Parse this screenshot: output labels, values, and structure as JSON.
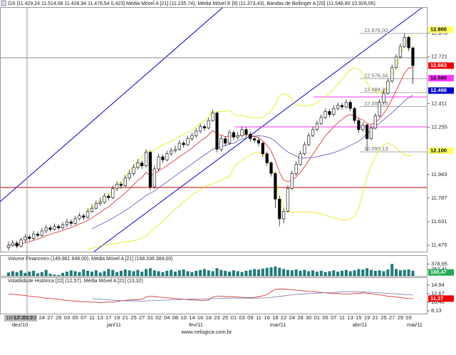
{
  "chart_data": {
    "type": "candlestick",
    "title": "DJI [11.429,24 11.514,08 11.428,94 11.476,54 0,423] Média Móvel A [21] (11.235,74), Média Móvel E [9] (11.373,43), Bandas de Bollinger A [20] (11.548,80 10.926,05)",
    "categories": [
      "10/12/2010",
      null,
      "17",
      null,
      "20",
      null,
      "22",
      null,
      "24",
      null,
      "27",
      null,
      "29",
      null,
      "03",
      null,
      "05",
      null,
      "07",
      null,
      "11",
      null,
      "13",
      null,
      "17",
      null,
      "19",
      null,
      "21",
      null,
      "25",
      null,
      "27",
      null,
      "31",
      null,
      "02",
      null,
      "04",
      null,
      "08",
      null,
      "10",
      null,
      "14",
      null,
      "16",
      null,
      "18",
      null,
      "23",
      null,
      "25",
      null,
      "01",
      null,
      "03",
      null,
      "09",
      null,
      "11",
      null,
      "16",
      null,
      "18",
      null,
      "22",
      null,
      "24",
      null,
      "28",
      null,
      "30",
      null,
      "01",
      null,
      "05",
      null,
      "07",
      null,
      "11",
      null,
      "13",
      null,
      "15",
      null,
      "19",
      null,
      "21",
      null,
      "25",
      null,
      "27",
      null,
      "29",
      null,
      "03",
      null
    ],
    "months": [
      "dez/10",
      "jan/11",
      "fev/11",
      "mar/11",
      "abr/11",
      "mai/11"
    ],
    "candles": [
      [
        11460,
        11500,
        11440,
        11475
      ],
      [
        11475,
        11510,
        11465,
        11490
      ],
      [
        11490,
        11505,
        11455,
        11470
      ],
      [
        11470,
        11525,
        11460,
        11510
      ],
      [
        11510,
        11550,
        11495,
        11530
      ],
      [
        11530,
        11545,
        11505,
        11520
      ],
      [
        11520,
        11570,
        11510,
        11550
      ],
      [
        11550,
        11565,
        11525,
        11540
      ],
      [
        11540,
        11590,
        11530,
        11570
      ],
      [
        11570,
        11610,
        11555,
        11590
      ],
      [
        11590,
        11605,
        11565,
        11580
      ],
      [
        11580,
        11620,
        11570,
        11600
      ],
      [
        11600,
        11615,
        11575,
        11590
      ],
      [
        11590,
        11630,
        11580,
        11610
      ],
      [
        11610,
        11650,
        11595,
        11630
      ],
      [
        11630,
        11645,
        11600,
        11620
      ],
      [
        11620,
        11670,
        11610,
        11650
      ],
      [
        11650,
        11690,
        11640,
        11670
      ],
      [
        11670,
        11685,
        11640,
        11660
      ],
      [
        11660,
        11720,
        11650,
        11700
      ],
      [
        11700,
        11745,
        11690,
        11720
      ],
      [
        11720,
        11770,
        11710,
        11750
      ],
      [
        11750,
        11790,
        11735,
        11760
      ],
      [
        11760,
        11820,
        11750,
        11800
      ],
      [
        11800,
        11815,
        11770,
        11790
      ],
      [
        11790,
        11870,
        11780,
        11850
      ],
      [
        11850,
        11900,
        11835,
        11880
      ],
      [
        11880,
        11895,
        11850,
        11870
      ],
      [
        11870,
        11940,
        11860,
        11920
      ],
      [
        11920,
        11975,
        11905,
        11950
      ],
      [
        11950,
        12010,
        11935,
        11990
      ],
      [
        11990,
        12045,
        11975,
        12020
      ],
      [
        12020,
        12035,
        11980,
        12000
      ],
      [
        12000,
        12110,
        11990,
        12090
      ],
      [
        12090,
        12100,
        11840,
        11860
      ],
      [
        11860,
        12000,
        11850,
        11980
      ],
      [
        11980,
        12080,
        11965,
        12060
      ],
      [
        12060,
        12075,
        12020,
        12040
      ],
      [
        12040,
        12100,
        12030,
        12080
      ],
      [
        12080,
        12120,
        12065,
        12100
      ],
      [
        12100,
        12135,
        12085,
        12110
      ],
      [
        12110,
        12170,
        12100,
        12150
      ],
      [
        12150,
        12165,
        12120,
        12140
      ],
      [
        12140,
        12200,
        12130,
        12180
      ],
      [
        12180,
        12220,
        12165,
        12200
      ],
      [
        12200,
        12250,
        12185,
        12230
      ],
      [
        12230,
        12280,
        12215,
        12260
      ],
      [
        12260,
        12275,
        12230,
        12250
      ],
      [
        12250,
        12320,
        12240,
        12300
      ],
      [
        12300,
        12370,
        12290,
        12350
      ],
      [
        12350,
        12360,
        12090,
        12110
      ],
      [
        12110,
        12200,
        12095,
        12180
      ],
      [
        12180,
        12195,
        12130,
        12150
      ],
      [
        12150,
        12240,
        12140,
        12220
      ],
      [
        12220,
        12235,
        12170,
        12190
      ],
      [
        12190,
        12225,
        12175,
        12200
      ],
      [
        12200,
        12260,
        12190,
        12240
      ],
      [
        12240,
        12255,
        12190,
        12210
      ],
      [
        12210,
        12225,
        12160,
        12180
      ],
      [
        12180,
        12195,
        12150,
        12170
      ],
      [
        12170,
        12185,
        12130,
        12150
      ],
      [
        12150,
        12160,
        12060,
        12080
      ],
      [
        12080,
        12095,
        12000,
        12020
      ],
      [
        12020,
        12030,
        11930,
        11950
      ],
      [
        11950,
        11960,
        11720,
        11780
      ],
      [
        11780,
        11800,
        11600,
        11650
      ],
      [
        11650,
        11720,
        11620,
        11700
      ],
      [
        11700,
        11870,
        11690,
        11850
      ],
      [
        11850,
        11970,
        11840,
        11950
      ],
      [
        11950,
        12030,
        11935,
        12010
      ],
      [
        12010,
        12100,
        12000,
        12080
      ],
      [
        12080,
        12160,
        12070,
        12140
      ],
      [
        12140,
        12220,
        12130,
        12200
      ],
      [
        12200,
        12260,
        12190,
        12240
      ],
      [
        12240,
        12300,
        12230,
        12280
      ],
      [
        12280,
        12340,
        12270,
        12320
      ],
      [
        12320,
        12380,
        12310,
        12360
      ],
      [
        12360,
        12375,
        12320,
        12340
      ],
      [
        12340,
        12400,
        12330,
        12380
      ],
      [
        12380,
        12420,
        12365,
        12400
      ],
      [
        12400,
        12415,
        12370,
        12390
      ],
      [
        12390,
        12440,
        12380,
        12420
      ],
      [
        12420,
        12435,
        12360,
        12380
      ],
      [
        12380,
        12390,
        12280,
        12300
      ],
      [
        12300,
        12315,
        12220,
        12240
      ],
      [
        12240,
        12290,
        12225,
        12270
      ],
      [
        12270,
        12280,
        12100,
        12180
      ],
      [
        12180,
        12270,
        12170,
        12250
      ],
      [
        12250,
        12350,
        12240,
        12330
      ],
      [
        12330,
        12440,
        12320,
        12420
      ],
      [
        12420,
        12500,
        12410,
        12480
      ],
      [
        12480,
        12580,
        12470,
        12560
      ],
      [
        12560,
        12670,
        12550,
        12650
      ],
      [
        12650,
        12740,
        12640,
        12720
      ],
      [
        12720,
        12810,
        12710,
        12790
      ],
      [
        12790,
        12876,
        12780,
        12850
      ],
      [
        12850,
        12860,
        12760,
        12780
      ],
      [
        12780,
        12790,
        12540,
        12663
      ]
    ],
    "ylim": [
      11433,
      13045
    ],
    "yticks": [
      {
        "value": 12876,
        "label": "12.876"
      },
      {
        "value": 12721,
        "label": "12.721"
      },
      {
        "value": 12411,
        "label": "12.411"
      },
      {
        "value": 12255,
        "label": "12.255"
      },
      {
        "value": 11943,
        "label": "11.943"
      },
      {
        "value": 11787,
        "label": "11.787"
      },
      {
        "value": 11631,
        "label": "11.631"
      },
      {
        "value": 11475,
        "label": "11.475"
      }
    ],
    "price_tags": [
      {
        "value": 12900,
        "label": "12.900",
        "color": "#ffff66"
      },
      {
        "value": 12663,
        "label": "12.663",
        "color": "#ee0000"
      },
      {
        "value": 12580,
        "label": "12.580",
        "color": "#ff33ff"
      },
      {
        "value": 12498,
        "label": "12.498",
        "color": "#0000cc"
      },
      {
        "value": 12100,
        "label": "12.100",
        "color": "#ffff66"
      }
    ],
    "annotations": [
      {
        "value": 12876,
        "label": "12.876,00"
      },
      {
        "value": 12576.34,
        "label": "12.576,34"
      },
      {
        "value": 12484.91,
        "label": "12.484,91"
      },
      {
        "value": 12392.18,
        "label": "12.392,18"
      },
      {
        "value": 12093.13,
        "label": "12.093,13"
      }
    ],
    "indicator_colors": {
      "ema9": "#dd2222",
      "sma21": "#5555bb",
      "bollinger": "#e6e600"
    },
    "volume": {
      "title": "Volume Financeiro (149.861.648,00), Média Móvel A [21] (168.336.384,00)",
      "color": "#1f7a7a",
      "values": [
        180,
        210,
        190,
        230,
        170,
        200,
        220,
        160,
        190,
        240,
        150,
        130,
        120,
        170,
        200,
        230,
        210,
        190,
        250,
        220,
        200,
        230,
        180,
        210,
        260,
        240,
        190,
        220,
        250,
        230,
        210,
        240,
        200,
        260,
        280,
        230,
        210,
        190,
        220,
        240,
        200,
        230,
        250,
        210,
        190,
        220,
        240,
        260,
        230,
        210,
        280,
        240,
        220,
        200,
        230,
        210,
        190,
        220,
        240,
        260,
        250,
        270,
        290,
        300,
        320,
        290,
        260,
        240,
        230,
        250,
        220,
        240,
        210,
        230,
        200,
        220,
        190,
        210,
        230,
        200,
        220,
        240,
        210,
        230,
        260,
        250,
        280,
        240,
        220,
        230,
        210,
        250,
        380,
        260,
        230,
        240,
        250,
        220
      ],
      "ylim": [
        100,
        435
      ],
      "yticks": [
        {
          "value": 378.65,
          "label": "378,65"
        },
        {
          "value": 252.41,
          "label": "252,41"
        }
      ],
      "tag": {
        "value": 180.47,
        "label": "180,47",
        "color": "#22aa55"
      }
    },
    "volatility": {
      "title": "Volatilidade Histórica [22] (12,57), Média Móvel A [21] (13,32)",
      "color": "#cc2222",
      "ma_color": "#7777aa",
      "values": [
        12.6,
        12.5,
        12.4,
        12.3,
        12.2,
        12.0,
        11.9,
        11.8,
        11.6,
        11.5,
        11.4,
        11.3,
        11.2,
        11.0,
        10.9,
        10.8,
        10.7,
        10.6,
        10.5,
        10.5,
        10.4,
        10.4,
        10.3,
        10.4,
        10.5,
        10.4,
        10.6,
        10.8,
        10.9,
        11.0,
        11.0,
        11.1,
        11.2,
        11.8,
        12.0,
        11.9,
        11.8,
        11.7,
        11.6,
        11.5,
        11.4,
        11.3,
        11.2,
        11.1,
        11.0,
        11.0,
        10.9,
        10.9,
        11.0,
        11.8,
        12.0,
        12.0,
        11.9,
        11.9,
        11.8,
        11.8,
        11.7,
        11.6,
        11.6,
        11.7,
        11.9,
        12.1,
        12.4,
        13.2,
        13.8,
        13.9,
        13.9,
        13.8,
        13.7,
        13.6,
        13.5,
        13.4,
        13.3,
        13.2,
        13.1,
        13.0,
        12.9,
        12.8,
        12.7,
        12.7,
        12.6,
        12.6,
        12.6,
        12.7,
        12.7,
        12.9,
        12.8,
        12.7,
        12.5,
        12.4,
        12.2,
        12.0,
        11.9,
        11.8,
        11.6,
        11.5,
        11.4,
        11.37
      ],
      "ylim": [
        7.39,
        15.49
      ],
      "yticks": [
        {
          "value": 14.94,
          "label": "14,94"
        },
        {
          "value": 12.67,
          "label": "12,67"
        },
        {
          "value": 10.4,
          "label": "10,40"
        },
        {
          "value": 8.13,
          "label": "8,13"
        }
      ],
      "tag": {
        "value": 11.37,
        "label": "11,37",
        "color": "#ee0000"
      }
    },
    "footer": "www.nelogica.com.br"
  }
}
